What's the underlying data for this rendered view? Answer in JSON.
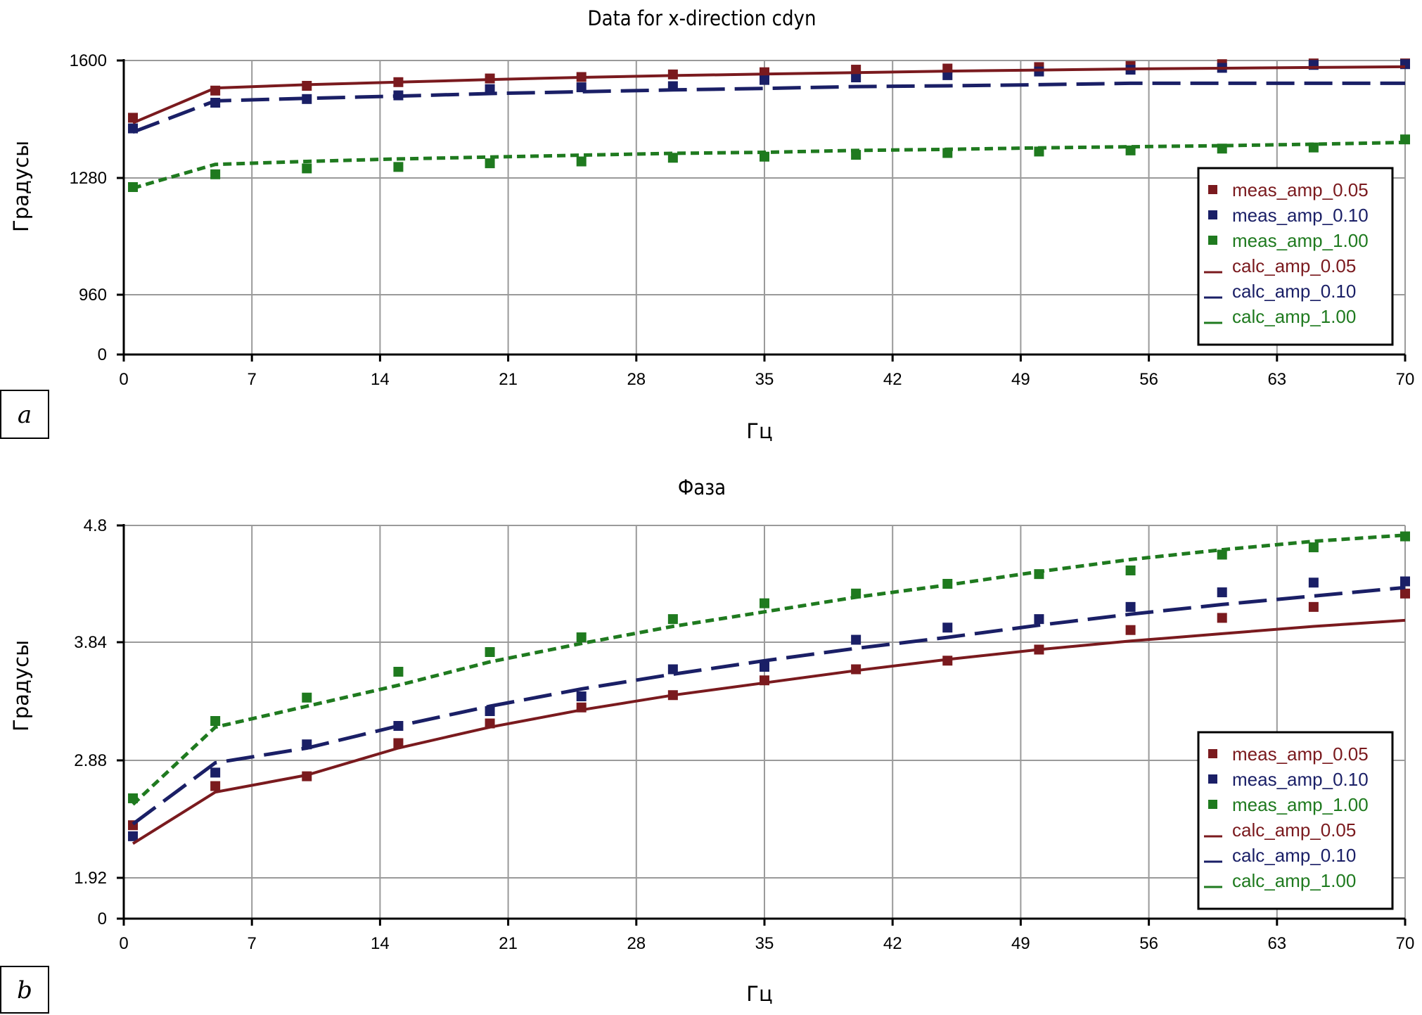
{
  "colors": {
    "amp_0_05": "#7a1a1e",
    "amp_0_10": "#1a1f66",
    "amp_1_00": "#1f7a1f",
    "grid": "#9a9a9a",
    "axis": "#000000"
  },
  "chart_data": [
    {
      "type": "line",
      "panel_tag": "a",
      "title": "Data for x-direction cdyn",
      "xlabel": "Гц",
      "ylabel": "Градусы",
      "xlim": [
        0,
        70
      ],
      "ylim": [
        0,
        1600
      ],
      "xticks": [
        0,
        7,
        14,
        21,
        28,
        35,
        42,
        49,
        56,
        63,
        70
      ],
      "xtick_labels": [
        "0",
        "7",
        "14",
        "21",
        "28",
        "35",
        "42",
        "49",
        "56",
        "63",
        "70"
      ],
      "yticks": [
        0,
        960,
        1280,
        1600
      ],
      "ytick_labels": [
        "0",
        "960",
        "1280",
        "1600"
      ],
      "grid": true,
      "legend_position": "right",
      "measured_x": [
        0.5,
        5,
        10,
        15,
        20,
        25,
        30,
        35,
        40,
        45,
        50,
        55,
        60,
        65,
        70
      ],
      "calc_x": [
        0.5,
        5,
        10,
        15,
        20,
        25,
        30,
        35,
        40,
        45,
        50,
        55,
        60,
        65,
        70
      ],
      "series": [
        {
          "name": "meas_amp_0.05",
          "kind": "measured",
          "color_key": "amp_0_05",
          "values": [
            1444,
            1518,
            1531,
            1541,
            1551,
            1555,
            1562,
            1568,
            1575,
            1578,
            1582,
            1585,
            1590,
            1592,
            1592
          ]
        },
        {
          "name": "meas_amp_0.10",
          "kind": "measured",
          "color_key": "amp_0_10",
          "values": [
            1415,
            1485,
            1495,
            1505,
            1522,
            1527,
            1530,
            1547,
            1554,
            1560,
            1570,
            1575,
            1580,
            1588,
            1590
          ]
        },
        {
          "name": "meas_amp_1.00",
          "kind": "measured",
          "color_key": "amp_1_00",
          "values": [
            1255,
            1290,
            1306,
            1310,
            1320,
            1325,
            1335,
            1338,
            1343,
            1348,
            1352,
            1355,
            1360,
            1363,
            1385
          ]
        },
        {
          "name": "calc_amp_0.05",
          "kind": "calculated",
          "color_key": "amp_0_05",
          "values": [
            1430,
            1525,
            1534,
            1541,
            1548,
            1554,
            1559,
            1563,
            1567,
            1571,
            1574,
            1577,
            1579,
            1581,
            1583
          ]
        },
        {
          "name": "calc_amp_0.10",
          "kind": "calculated",
          "color_key": "amp_0_10",
          "values": [
            1405,
            1490,
            1497,
            1503,
            1510,
            1515,
            1520,
            1524,
            1529,
            1531,
            1534,
            1538,
            1538,
            1538,
            1538
          ]
        },
        {
          "name": "calc_amp_1.00",
          "kind": "calculated",
          "color_key": "amp_1_00",
          "values": [
            1252,
            1317,
            1325,
            1332,
            1337,
            1342,
            1347,
            1350,
            1355,
            1358,
            1362,
            1365,
            1368,
            1372,
            1377
          ]
        }
      ]
    },
    {
      "type": "line",
      "panel_tag": "b",
      "title": "Фаза",
      "xlabel": "Гц",
      "ylabel": "Градусы",
      "xlim": [
        0,
        70
      ],
      "ylim": [
        0,
        4.8
      ],
      "xticks": [
        0,
        7,
        14,
        21,
        28,
        35,
        42,
        49,
        56,
        63,
        70
      ],
      "xtick_labels": [
        "0",
        "7",
        "14",
        "21",
        "28",
        "35",
        "42",
        "49",
        "56",
        "63",
        "70"
      ],
      "yticks": [
        0,
        1.92,
        2.88,
        3.84,
        4.8
      ],
      "ytick_labels": [
        "0",
        "1.92",
        "2.88",
        "3.84",
        "4.8"
      ],
      "grid": true,
      "legend_position": "right",
      "measured_x": [
        0.5,
        5,
        10,
        15,
        20,
        25,
        30,
        35,
        40,
        45,
        50,
        55,
        60,
        65,
        70
      ],
      "calc_x": [
        0.5,
        5,
        10,
        15,
        20,
        25,
        30,
        35,
        40,
        45,
        50,
        55,
        60,
        65,
        70
      ],
      "series": [
        {
          "name": "meas_amp_0.05",
          "kind": "measured",
          "color_key": "amp_0_05",
          "values": [
            2.35,
            2.67,
            2.75,
            3.02,
            3.18,
            3.31,
            3.41,
            3.53,
            3.62,
            3.69,
            3.78,
            3.94,
            4.04,
            4.13,
            4.24
          ]
        },
        {
          "name": "meas_amp_0.10",
          "kind": "measured",
          "color_key": "amp_0_10",
          "values": [
            2.26,
            2.78,
            3.01,
            3.16,
            3.28,
            3.4,
            3.62,
            3.64,
            3.86,
            3.96,
            4.03,
            4.13,
            4.25,
            4.33,
            4.34
          ]
        },
        {
          "name": "meas_amp_1.00",
          "kind": "measured",
          "color_key": "amp_1_00",
          "values": [
            2.57,
            3.2,
            3.39,
            3.6,
            3.76,
            3.88,
            4.03,
            4.16,
            4.24,
            4.32,
            4.4,
            4.43,
            4.56,
            4.62,
            4.71
          ]
        },
        {
          "name": "calc_amp_0.05",
          "kind": "calculated",
          "color_key": "amp_0_05",
          "values": [
            2.2,
            2.62,
            2.76,
            2.98,
            3.15,
            3.29,
            3.41,
            3.51,
            3.61,
            3.7,
            3.78,
            3.85,
            3.91,
            3.97,
            4.02
          ]
        },
        {
          "name": "calc_amp_0.10",
          "kind": "calculated",
          "color_key": "amp_0_10",
          "values": [
            2.36,
            2.86,
            2.98,
            3.16,
            3.32,
            3.46,
            3.58,
            3.69,
            3.79,
            3.88,
            3.98,
            4.07,
            4.15,
            4.22,
            4.29
          ]
        },
        {
          "name": "calc_amp_1.00",
          "kind": "calculated",
          "color_key": "amp_1_00",
          "values": [
            2.52,
            3.15,
            3.32,
            3.49,
            3.68,
            3.83,
            3.97,
            4.09,
            4.21,
            4.31,
            4.42,
            4.52,
            4.6,
            4.67,
            4.72
          ]
        }
      ]
    }
  ]
}
